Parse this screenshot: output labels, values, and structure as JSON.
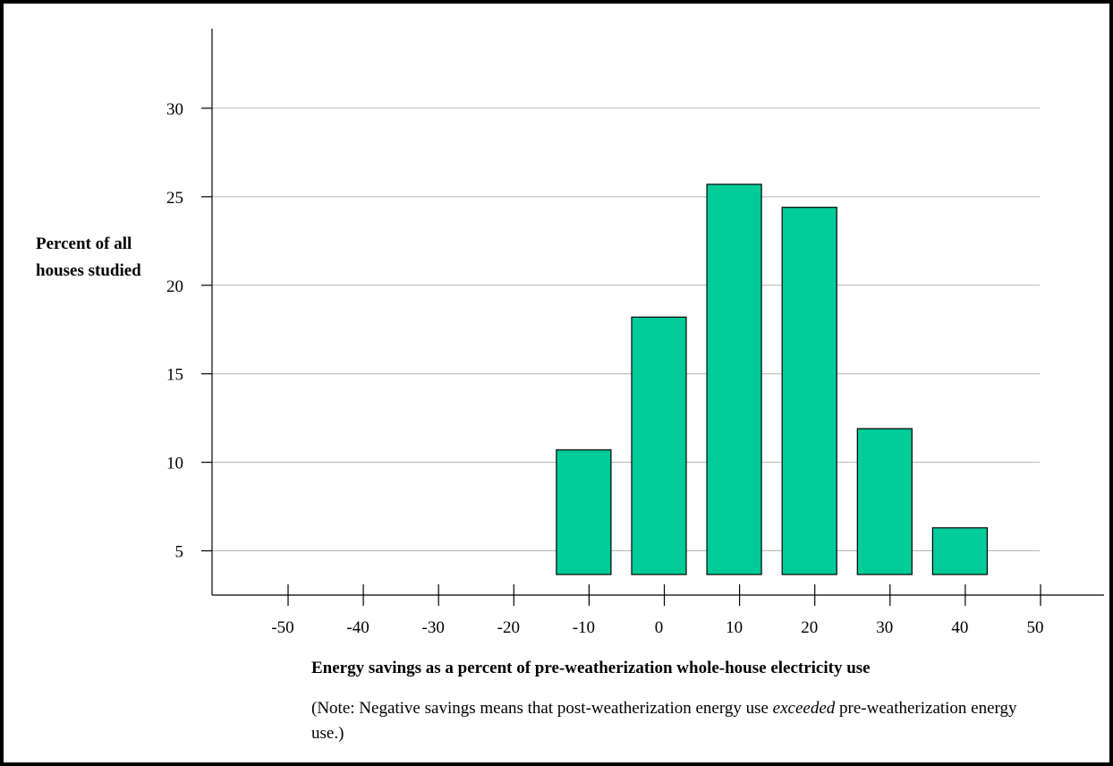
{
  "chart_data": {
    "type": "bar",
    "categories": [
      "-50",
      "-40",
      "-30",
      "-20",
      "-10",
      "0",
      "10",
      "20",
      "30",
      "40",
      "50"
    ],
    "values": [
      0.7,
      0,
      0.7,
      0.7,
      8.2,
      15.7,
      23.2,
      21.9,
      9.4,
      3.8,
      0.7
    ],
    "title": "",
    "xlabel": "Energy savings as a percent of pre-weatherization whole-house electricity use",
    "ylabel": "Percent of all houses studied",
    "yticks": [
      5,
      10,
      15,
      20,
      25,
      30
    ],
    "ylim": [
      2.5,
      35
    ],
    "grid": true,
    "bar_color": "#00cc99"
  },
  "note": {
    "prefix": "(Note: Negative savings means that post-weatherization energy use ",
    "emphasis": "exceeded",
    "suffix": " pre-weatherization energy use.)"
  }
}
